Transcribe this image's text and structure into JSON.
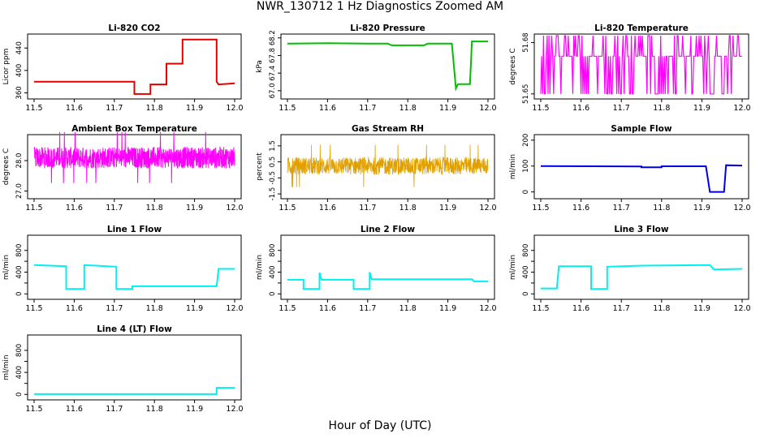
{
  "figure": {
    "title": "NWR_130712  1 Hz Diagnostics Zoomed AM",
    "xlabel": "Hour of Day (UTC)"
  },
  "chart_data": [
    {
      "type": "line",
      "title": "Li-820 CO2",
      "ylabel": "Licor ppm",
      "color": "#e00000",
      "xlim": [
        11.5,
        12.0
      ],
      "xticks": [
        "11.5",
        "11.6",
        "11.7",
        "11.8",
        "11.9",
        "12.0"
      ],
      "ylim": [
        352,
        462
      ],
      "yticks": [
        360,
        400,
        440
      ],
      "ytick_labels": [
        "360",
        "400",
        "440"
      ],
      "series": [
        {
          "x": [
            11.5,
            11.75,
            11.75,
            11.79,
            11.79,
            11.83,
            11.83,
            11.87,
            11.87,
            11.955,
            11.955,
            11.96,
            12.0
          ],
          "values": [
            380,
            380,
            358,
            358,
            375,
            375,
            412,
            412,
            455,
            455,
            380,
            375,
            377
          ]
        }
      ]
    },
    {
      "type": "line",
      "title": "Li-820 Pressure",
      "ylabel": "kPa",
      "color": "#00c000",
      "xlim": [
        11.5,
        12.0
      ],
      "xticks": [
        "11.5",
        "11.6",
        "11.7",
        "11.8",
        "11.9",
        "12.0"
      ],
      "ylim": [
        66.85,
        68.25
      ],
      "yticks": [
        67.0,
        67.4,
        67.8,
        68.2
      ],
      "ytick_labels": [
        "67.0",
        "67.4",
        "67.8",
        "68.2"
      ],
      "series": [
        {
          "x": [
            11.5,
            11.6,
            11.7,
            11.75,
            11.76,
            11.84,
            11.85,
            11.91,
            11.92,
            11.925,
            11.955,
            11.96,
            11.965,
            12.0
          ],
          "values": [
            68.07,
            68.08,
            68.07,
            68.07,
            68.03,
            68.03,
            68.07,
            68.07,
            67.05,
            67.15,
            67.15,
            68.12,
            68.12,
            68.12
          ]
        }
      ]
    },
    {
      "type": "line",
      "title": "Li-820 Temperature",
      "ylabel": "degrees C",
      "color": "#ff00ff",
      "xlim": [
        11.5,
        12.0
      ],
      "xticks": [
        "11.5",
        "11.6",
        "11.7",
        "11.8",
        "11.9",
        "12.0"
      ],
      "ylim": [
        51.648,
        51.684
      ],
      "yticks": [
        51.65,
        51.68
      ],
      "ytick_labels": [
        "51.65",
        "51.68"
      ],
      "pattern": "binary",
      "levels": [
        51.65,
        51.672,
        51.684
      ]
    },
    {
      "type": "line",
      "title": "Ambient Box Temperature",
      "ylabel": "degrees C",
      "color": "#ff00ff",
      "xlim": [
        11.5,
        12.0
      ],
      "xticks": [
        "11.5",
        "11.6",
        "11.7",
        "11.8",
        "11.9",
        "12.0"
      ],
      "ylim": [
        26.8,
        28.8
      ],
      "yticks": [
        27.0,
        28.0
      ],
      "ytick_labels": [
        "27.0",
        "28.0"
      ],
      "pattern": "noise",
      "center": 28.1,
      "spread": 0.35
    },
    {
      "type": "scatter",
      "title": "Gas Stream RH",
      "ylabel": "percent",
      "color": "#e0a000",
      "xlim": [
        11.5,
        12.0
      ],
      "xticks": [
        "11.5",
        "11.6",
        "11.7",
        "11.8",
        "11.9",
        "12.0"
      ],
      "ylim": [
        -1.7,
        2.1
      ],
      "yticks": [
        -1.5,
        -0.5,
        0.5,
        1.5
      ],
      "ytick_labels": [
        "-1.5",
        "-0.5",
        "0.5",
        "1.5"
      ],
      "pattern": "noise",
      "center": 0.25,
      "spread": 0.55
    },
    {
      "type": "line",
      "title": "Sample Flow",
      "ylabel": "ml/min",
      "color": "#0000e0",
      "xlim": [
        11.5,
        12.0
      ],
      "xticks": [
        "11.5",
        "11.6",
        "11.7",
        "11.8",
        "11.9",
        "12.0"
      ],
      "ylim": [
        -20,
        215
      ],
      "yticks": [
        0,
        100,
        200
      ],
      "ytick_labels": [
        "0",
        "100",
        "200"
      ],
      "series": [
        {
          "x": [
            11.5,
            11.75,
            11.75,
            11.8,
            11.8,
            11.91,
            11.92,
            11.955,
            11.96,
            12.0
          ],
          "values": [
            100,
            98,
            95,
            95,
            99,
            99,
            0,
            0,
            103,
            102
          ]
        }
      ]
    },
    {
      "type": "line",
      "title": "Line 1 Flow",
      "ylabel": "ml/min",
      "color": "#00f0f0",
      "xlim": [
        11.5,
        12.0
      ],
      "xticks": [
        "11.5",
        "11.6",
        "11.7",
        "11.8",
        "11.9",
        "12.0"
      ],
      "ylim": [
        -70,
        1050
      ],
      "yticks": [
        0,
        200,
        400,
        600,
        800
      ],
      "ytick_labels": [
        "0",
        "400",
        "800"
      ],
      "series": [
        {
          "x": [
            11.5,
            11.58,
            11.58,
            11.625,
            11.625,
            11.705,
            11.705,
            11.745,
            11.745,
            11.955,
            11.96,
            12.0
          ],
          "values": [
            530,
            510,
            90,
            90,
            530,
            500,
            90,
            90,
            140,
            140,
            460,
            460
          ]
        }
      ]
    },
    {
      "type": "line",
      "title": "Line 2 Flow",
      "ylabel": "ml/min",
      "color": "#00f0f0",
      "xlim": [
        11.5,
        12.0
      ],
      "xticks": [
        "11.5",
        "11.6",
        "11.7",
        "11.8",
        "11.9",
        "12.0"
      ],
      "ylim": [
        -70,
        1050
      ],
      "yticks": [
        0,
        200,
        400,
        600,
        800
      ],
      "ytick_labels": [
        "0",
        "400",
        "800"
      ],
      "series": [
        {
          "x": [
            11.5,
            11.54,
            11.54,
            11.58,
            11.58,
            11.585,
            11.665,
            11.665,
            11.705,
            11.705,
            11.71,
            11.96,
            11.965,
            12.0
          ],
          "values": [
            260,
            260,
            90,
            90,
            390,
            260,
            260,
            90,
            90,
            400,
            270,
            270,
            230,
            230
          ]
        }
      ]
    },
    {
      "type": "line",
      "title": "Line 3 Flow",
      "ylabel": "ml/min",
      "color": "#00f0f0",
      "xlim": [
        11.5,
        12.0
      ],
      "xticks": [
        "11.5",
        "11.6",
        "11.7",
        "11.8",
        "11.9",
        "12.0"
      ],
      "ylim": [
        -70,
        1050
      ],
      "yticks": [
        0,
        200,
        400,
        600,
        800
      ],
      "ytick_labels": [
        "0",
        "400",
        "800"
      ],
      "series": [
        {
          "x": [
            11.5,
            11.54,
            11.545,
            11.625,
            11.625,
            11.665,
            11.665,
            11.75,
            11.92,
            11.93,
            12.0
          ],
          "values": [
            100,
            100,
            510,
            510,
            90,
            90,
            500,
            520,
            530,
            450,
            460
          ]
        }
      ]
    },
    {
      "type": "line",
      "title": "Line 4 (LT) Flow",
      "ylabel": "ml/min",
      "color": "#00f0f0",
      "xlim": [
        11.5,
        12.0
      ],
      "xticks": [
        "11.5",
        "11.6",
        "11.7",
        "11.8",
        "11.9",
        "12.0"
      ],
      "ylim": [
        -70,
        1050
      ],
      "yticks": [
        0,
        200,
        400,
        600,
        800
      ],
      "ytick_labels": [
        "0",
        "400",
        "800"
      ],
      "series": [
        {
          "x": [
            11.5,
            11.955,
            11.955,
            12.0
          ],
          "values": [
            5,
            5,
            120,
            120
          ]
        }
      ]
    }
  ]
}
